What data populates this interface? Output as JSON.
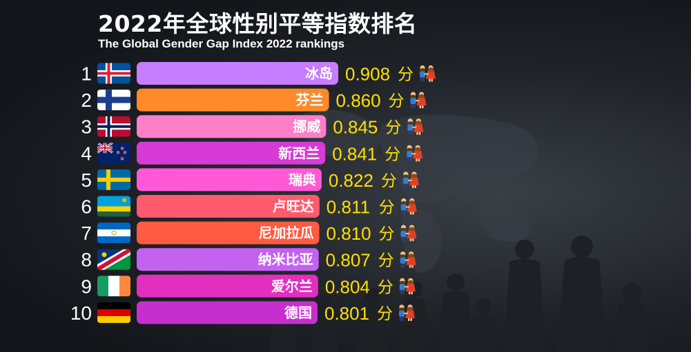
{
  "title": "2022年全球性别平等指数排名",
  "subtitle": "The Global Gender Gap Index 2022 rankings",
  "chart_data": {
    "type": "bar",
    "orientation": "horizontal",
    "title": "2022年全球性别平等指数排名",
    "subtitle": "The Global Gender Gap Index 2022 rankings",
    "unit": "分",
    "ranks": [
      "1",
      "2",
      "3",
      "4",
      "5",
      "6",
      "7",
      "8",
      "9",
      "10"
    ],
    "categories": [
      "冰岛",
      "芬兰",
      "挪威",
      "新西兰",
      "瑞典",
      "卢旺达",
      "尼加拉瓜",
      "纳米比亚",
      "爱尔兰",
      "德国"
    ],
    "values": [
      0.908,
      0.86,
      0.845,
      0.841,
      0.822,
      0.811,
      0.81,
      0.807,
      0.804,
      0.801
    ],
    "value_labels": [
      "0.908",
      "0.860",
      "0.845",
      "0.841",
      "0.822",
      "0.811",
      "0.810",
      "0.807",
      "0.804",
      "0.801"
    ],
    "bar_colors": [
      "#c77dff",
      "#ff8a2a",
      "#ff7ec8",
      "#d63bd6",
      "#ff59d8",
      "#ff5a6e",
      "#ff5a42",
      "#c462f0",
      "#e22fbf",
      "#c52fcd"
    ],
    "flags": [
      "iceland-flag",
      "finland-flag",
      "norway-flag",
      "new-zealand-flag",
      "sweden-flag",
      "rwanda-flag",
      "nicaragua-flag",
      "namibia-flag",
      "ireland-flag",
      "germany-flag"
    ],
    "value_icon": "family-icon",
    "grid": false,
    "legend": "none"
  }
}
